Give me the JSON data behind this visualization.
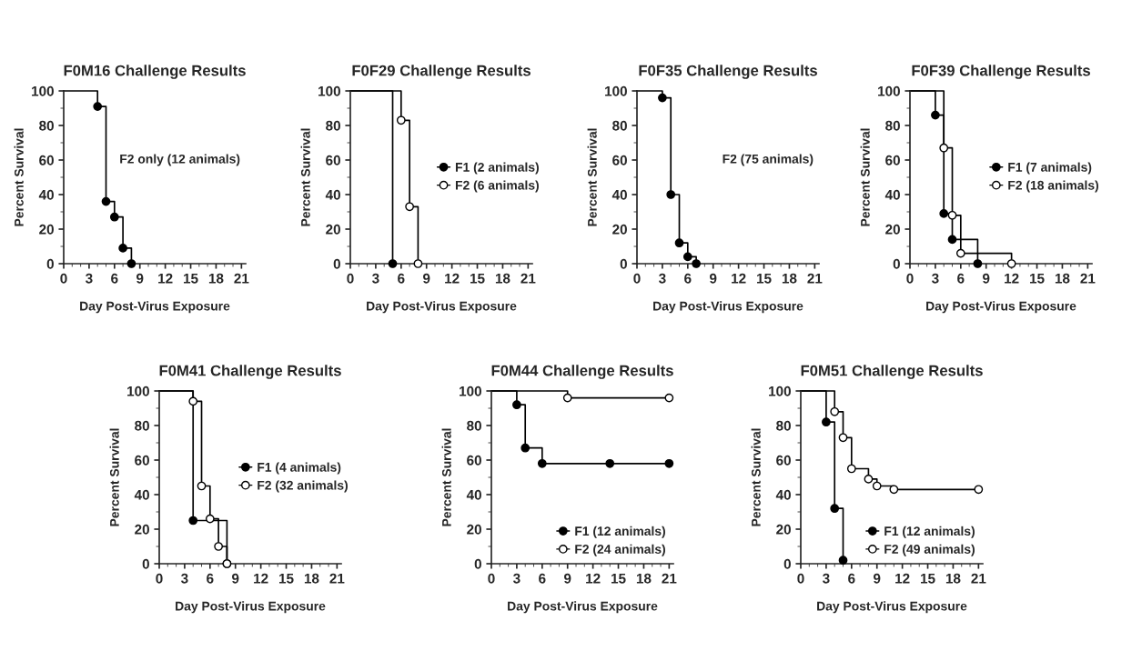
{
  "chart_data": [
    {
      "type": "step",
      "title": "F0M16 Challenge Results",
      "xlabel": "Day Post-Virus Exposure",
      "ylabel": "Percent Survival",
      "xlim": [
        0,
        21.5
      ],
      "ylim": [
        0,
        100
      ],
      "xticks": [
        0,
        3,
        6,
        9,
        12,
        15,
        18,
        21
      ],
      "yticks": [
        0,
        20,
        40,
        60,
        80,
        100
      ],
      "marker": "circle",
      "legend": false,
      "annotations": [
        "F2 only (12 animals)"
      ],
      "series": [
        {
          "x": [
            0,
            4,
            5,
            6,
            7,
            8
          ],
          "values": [
            100,
            91,
            36,
            27,
            9,
            0
          ],
          "color": "#000000"
        }
      ]
    },
    {
      "type": "step",
      "title": "F0F29 Challenge Results",
      "xlabel": "Day Post-Virus Exposure",
      "ylabel": "Percent Survival",
      "xlim": [
        0,
        21.5
      ],
      "ylim": [
        0,
        100
      ],
      "xticks": [
        0,
        3,
        6,
        9,
        12,
        15,
        18,
        21
      ],
      "yticks": [
        0,
        20,
        40,
        60,
        80,
        100
      ],
      "marker": "circle",
      "legend": "right",
      "series": [
        {
          "name": "F1 (2 animals)",
          "x": [
            0,
            5
          ],
          "values": [
            100,
            0
          ],
          "color": "#000000"
        },
        {
          "name": "F2 (6 animals)",
          "x": [
            0,
            6,
            7,
            8
          ],
          "values": [
            100,
            83,
            33,
            0
          ],
          "color": "#000000"
        }
      ]
    },
    {
      "type": "step",
      "title": "F0F35 Challenge Results",
      "xlabel": "Day Post-Virus Exposure",
      "ylabel": "Percent Survival",
      "xlim": [
        0,
        21.5
      ],
      "ylim": [
        0,
        100
      ],
      "xticks": [
        0,
        3,
        6,
        9,
        12,
        15,
        18,
        21
      ],
      "yticks": [
        0,
        20,
        40,
        60,
        80,
        100
      ],
      "marker": "circle",
      "legend": false,
      "annotations": [
        "F2 (75 animals)"
      ],
      "series": [
        {
          "x": [
            0,
            3,
            4,
            5,
            6,
            7
          ],
          "values": [
            100,
            96,
            40,
            12,
            4,
            0
          ],
          "color": "#000000"
        }
      ]
    },
    {
      "type": "step",
      "title": "F0F39 Challenge Results",
      "xlabel": "Day Post-Virus Exposure",
      "ylabel": "Percent Survival",
      "xlim": [
        0,
        21.5
      ],
      "ylim": [
        0,
        100
      ],
      "xticks": [
        0,
        3,
        6,
        9,
        12,
        15,
        18,
        21
      ],
      "yticks": [
        0,
        20,
        40,
        60,
        80,
        100
      ],
      "marker": "circle",
      "legend": "right",
      "series": [
        {
          "name": "F1 (7 animals)",
          "x": [
            0,
            3,
            4,
            5,
            8
          ],
          "values": [
            100,
            86,
            29,
            14,
            0
          ],
          "color": "#000000"
        },
        {
          "name": "F2 (18 animals)",
          "x": [
            0,
            4,
            5,
            6,
            12
          ],
          "values": [
            100,
            67,
            28,
            6,
            0
          ],
          "color": "#000000"
        }
      ]
    },
    {
      "type": "step",
      "title": "F0M41 Challenge Results",
      "xlabel": "Day Post-Virus Exposure",
      "ylabel": "Percent Survival",
      "xlim": [
        0,
        21.5
      ],
      "ylim": [
        0,
        100
      ],
      "xticks": [
        0,
        3,
        6,
        9,
        12,
        15,
        18,
        21
      ],
      "yticks": [
        0,
        20,
        40,
        60,
        80,
        100
      ],
      "marker": "circle",
      "legend": "right",
      "series": [
        {
          "name": "F1 (4 animals)",
          "x": [
            0,
            4,
            8
          ],
          "values": [
            100,
            25,
            0
          ],
          "color": "#000000"
        },
        {
          "name": "F2 (32 animals)",
          "x": [
            0,
            4,
            5,
            6,
            7,
            8
          ],
          "values": [
            100,
            94,
            45,
            26,
            10,
            0
          ],
          "color": "#000000"
        }
      ]
    },
    {
      "type": "step",
      "title": "F0M44 Challenge Results",
      "xlabel": "Day Post-Virus Exposure",
      "ylabel": "Percent Survival",
      "xlim": [
        0,
        21.5
      ],
      "ylim": [
        0,
        100
      ],
      "xticks": [
        0,
        3,
        6,
        9,
        12,
        15,
        18,
        21
      ],
      "yticks": [
        0,
        20,
        40,
        60,
        80,
        100
      ],
      "marker": "circle",
      "legend": "bottom right",
      "series": [
        {
          "name": "F1 (12 animals)",
          "x": [
            0,
            3,
            4,
            6,
            14,
            21
          ],
          "values": [
            100,
            92,
            67,
            58,
            58,
            58
          ],
          "color": "#000000"
        },
        {
          "name": "F2 (24 animals)",
          "x": [
            0,
            9,
            21
          ],
          "values": [
            100,
            96,
            96
          ],
          "color": "#000000"
        }
      ]
    },
    {
      "type": "step",
      "title": "F0M51 Challenge Results",
      "xlabel": "Day Post-Virus Exposure",
      "ylabel": "Percent Survival",
      "xlim": [
        0,
        21.5
      ],
      "ylim": [
        0,
        100
      ],
      "xticks": [
        0,
        3,
        6,
        9,
        12,
        15,
        18,
        21
      ],
      "yticks": [
        0,
        20,
        40,
        60,
        80,
        100
      ],
      "marker": "circle",
      "legend": "bottom right",
      "series": [
        {
          "name": "F1 (12 animals)",
          "x": [
            0,
            3,
            4,
            5
          ],
          "values": [
            100,
            82,
            32,
            2
          ],
          "color": "#000000"
        },
        {
          "name": "F2 (49 animals)",
          "x": [
            0,
            4,
            5,
            6,
            8,
            9,
            11,
            21
          ],
          "values": [
            100,
            88,
            73,
            55,
            49,
            45,
            43,
            43
          ],
          "color": "#000000"
        }
      ]
    }
  ]
}
